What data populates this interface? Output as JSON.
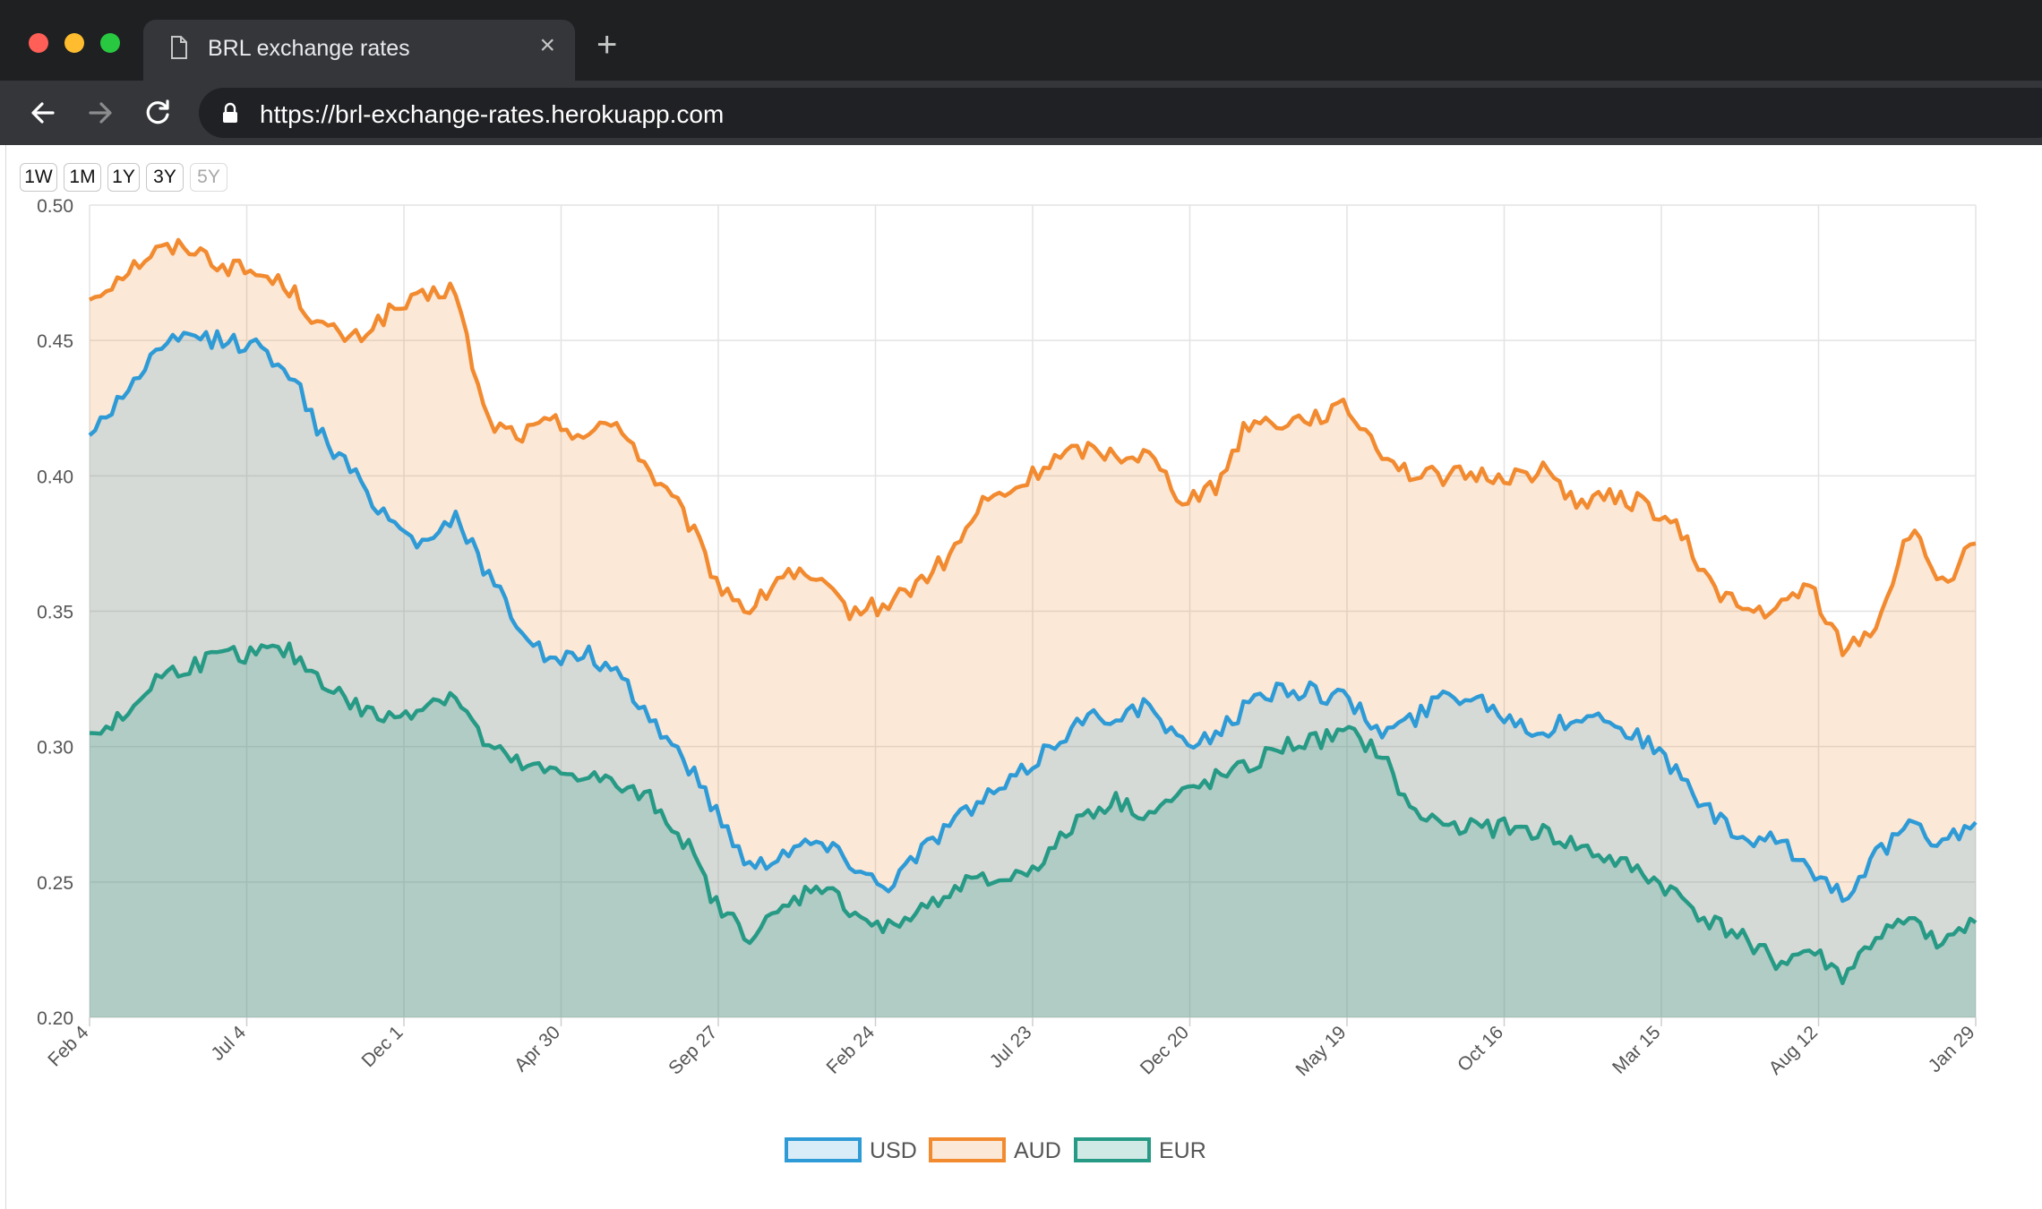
{
  "browser": {
    "tab_title": "BRL exchange rates",
    "new_tab_symbol": "+",
    "close_symbol": "×",
    "url": "https://brl-exchange-rates.herokuapp.com"
  },
  "range_buttons": [
    {
      "label": "1W",
      "disabled": false
    },
    {
      "label": "1M",
      "disabled": false
    },
    {
      "label": "1Y",
      "disabled": false
    },
    {
      "label": "3Y",
      "disabled": false
    },
    {
      "label": "5Y",
      "disabled": true
    }
  ],
  "colors": {
    "USD": "#2f9bd6",
    "AUD": "#f28a30",
    "EUR": "#279a86",
    "USD_fill": "rgba(47,155,214,0.18)",
    "AUD_fill": "rgba(242,138,48,0.20)",
    "EUR_fill": "rgba(39,154,134,0.22)"
  },
  "chart_data": {
    "type": "area",
    "ylim": [
      0.2,
      0.5
    ],
    "y_ticks": [
      "0.50",
      "0.45",
      "0.40",
      "0.35",
      "0.30",
      "0.25",
      "0.20"
    ],
    "x_ticks": [
      "Feb 4",
      "Jul 4",
      "Dec 1",
      "Apr 30",
      "Sep 27",
      "Feb 24",
      "Jul 23",
      "Dec 20",
      "May 19",
      "Oct 16",
      "Mar 15",
      "Aug 12",
      "Jan 29"
    ],
    "grid": true,
    "legend_position": "bottom",
    "series": [
      {
        "name": "USD",
        "values": [
          0.415,
          0.43,
          0.445,
          0.452,
          0.45,
          0.448,
          0.44,
          0.415,
          0.4,
          0.385,
          0.375,
          0.385,
          0.365,
          0.345,
          0.33,
          0.335,
          0.325,
          0.31,
          0.295,
          0.275,
          0.255,
          0.262,
          0.265,
          0.258,
          0.248,
          0.26,
          0.272,
          0.28,
          0.288,
          0.3,
          0.31,
          0.312,
          0.315,
          0.3,
          0.305,
          0.315,
          0.322,
          0.32,
          0.318,
          0.305,
          0.31,
          0.32,
          0.318,
          0.31,
          0.305,
          0.312,
          0.31,
          0.302,
          0.29,
          0.275,
          0.265,
          0.265,
          0.255,
          0.245,
          0.26,
          0.27,
          0.265,
          0.272
        ]
      },
      {
        "name": "AUD",
        "values": [
          0.465,
          0.475,
          0.483,
          0.485,
          0.478,
          0.475,
          0.47,
          0.455,
          0.45,
          0.46,
          0.465,
          0.47,
          0.42,
          0.415,
          0.42,
          0.415,
          0.42,
          0.4,
          0.385,
          0.36,
          0.35,
          0.365,
          0.36,
          0.35,
          0.352,
          0.36,
          0.37,
          0.39,
          0.395,
          0.405,
          0.41,
          0.408,
          0.408,
          0.392,
          0.395,
          0.42,
          0.42,
          0.422,
          0.425,
          0.41,
          0.4,
          0.4,
          0.4,
          0.4,
          0.402,
          0.39,
          0.392,
          0.39,
          0.38,
          0.36,
          0.35,
          0.35,
          0.36,
          0.335,
          0.345,
          0.38,
          0.36,
          0.375
        ]
      },
      {
        "name": "EUR",
        "values": [
          0.305,
          0.31,
          0.325,
          0.33,
          0.333,
          0.335,
          0.335,
          0.325,
          0.315,
          0.31,
          0.315,
          0.32,
          0.3,
          0.293,
          0.29,
          0.29,
          0.285,
          0.28,
          0.265,
          0.24,
          0.23,
          0.24,
          0.25,
          0.24,
          0.232,
          0.238,
          0.248,
          0.25,
          0.252,
          0.26,
          0.275,
          0.28,
          0.275,
          0.282,
          0.288,
          0.292,
          0.3,
          0.302,
          0.305,
          0.298,
          0.275,
          0.272,
          0.27,
          0.27,
          0.268,
          0.263,
          0.258,
          0.253,
          0.245,
          0.235,
          0.23,
          0.22,
          0.225,
          0.215,
          0.23,
          0.235,
          0.228,
          0.235
        ]
      }
    ]
  }
}
